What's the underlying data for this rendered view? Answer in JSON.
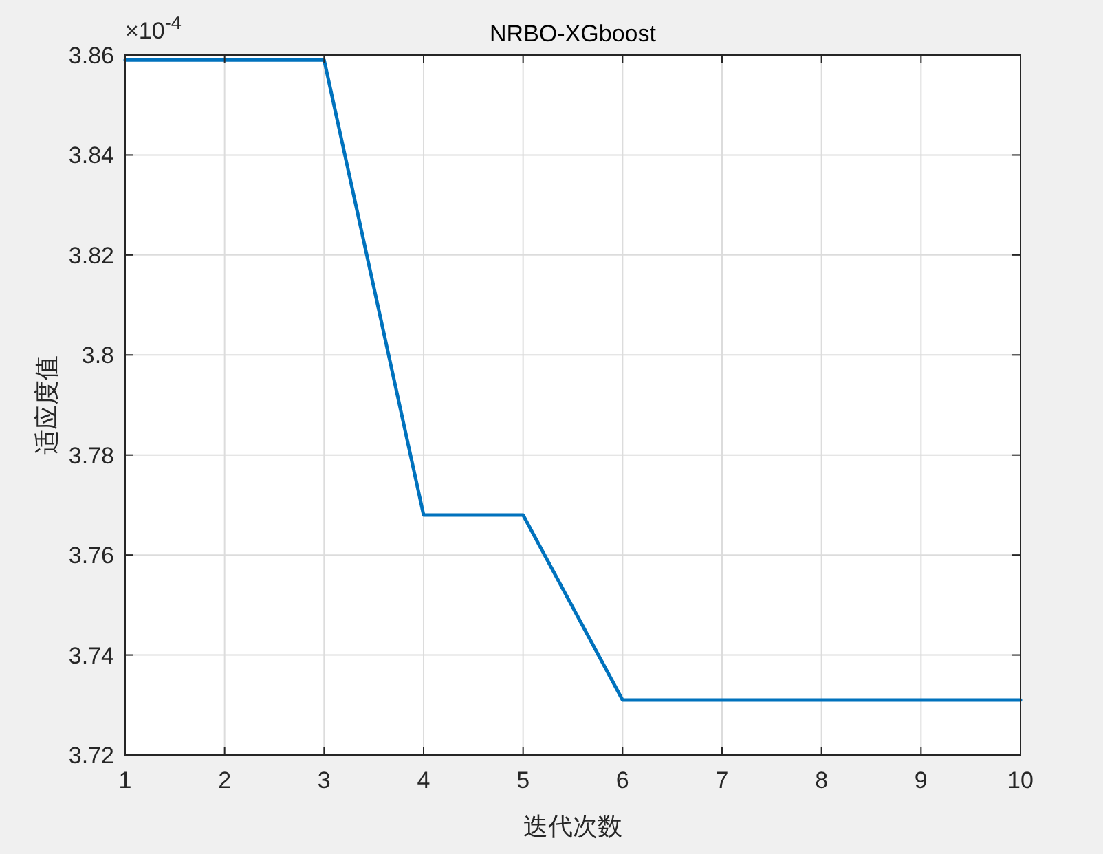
{
  "chart_data": {
    "type": "line",
    "title": "NRBO-XGboost",
    "xlabel": "迭代次数",
    "ylabel": "适应度值",
    "x": [
      1,
      2,
      3,
      4,
      5,
      6,
      7,
      8,
      9,
      10
    ],
    "series": [
      {
        "color": "#0072bd",
        "values": [
          3.859,
          3.859,
          3.859,
          3.768,
          3.768,
          3.731,
          3.731,
          3.731,
          3.731,
          3.731
        ]
      }
    ],
    "xlim": [
      1,
      10
    ],
    "xticks": [
      1,
      2,
      3,
      4,
      5,
      6,
      7,
      8,
      9,
      10
    ],
    "ylim": [
      3.72,
      3.86
    ],
    "yticks": [
      3.72,
      3.74,
      3.76,
      3.78,
      3.8,
      3.82,
      3.84,
      3.86
    ],
    "annotations": [
      "×10$^{-4}$"
    ],
    "grid": true,
    "marker": "none",
    "line_style": "solid"
  }
}
